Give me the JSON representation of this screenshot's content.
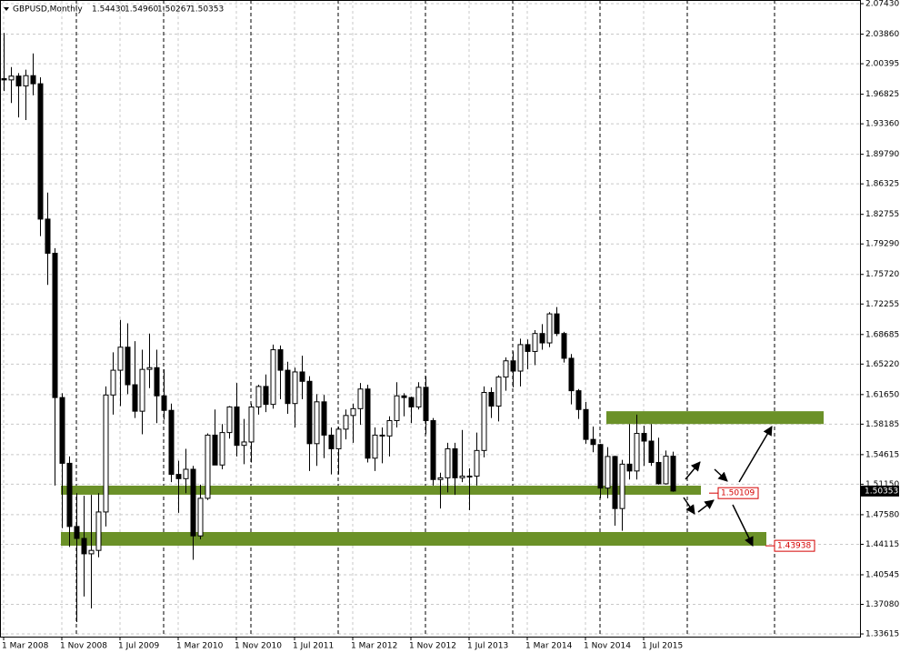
{
  "chart_data": {
    "type": "candlestick",
    "title": "GBPUSD,Monthly",
    "ohlc_text": [
      "1.54430",
      "1.54960",
      "1.50267",
      "1.50353"
    ],
    "x": [
      "1 Mar 2008",
      null,
      null,
      null,
      null,
      null,
      null,
      null,
      "1 Nov 2008",
      null,
      null,
      null,
      null,
      null,
      null,
      null,
      "1 Jul 2009",
      null,
      null,
      null,
      null,
      null,
      null,
      null,
      "1 Mar 2010",
      null,
      null,
      null,
      null,
      null,
      null,
      null,
      "1 Nov 2010",
      null,
      null,
      null,
      null,
      null,
      null,
      null,
      "1 Jul 2011",
      null,
      null,
      null,
      null,
      null,
      null,
      null,
      "1 Mar 2012",
      null,
      null,
      null,
      null,
      null,
      null,
      null,
      "1 Nov 2012",
      null,
      null,
      null,
      null,
      null,
      null,
      null,
      "1 Jul 2013",
      null,
      null,
      null,
      null,
      null,
      null,
      null,
      "1 Mar 2014",
      null,
      null,
      null,
      null,
      null,
      null,
      null,
      "1 Nov 2014",
      null,
      null,
      null,
      null,
      null,
      null,
      null,
      "1 Jul 2015",
      null,
      null,
      null,
      null
    ],
    "open": [
      1.9865,
      1.985,
      1.9895,
      1.978,
      1.99,
      1.9805,
      1.822,
      1.782,
      1.613,
      1.536,
      1.462,
      1.448,
      1.43,
      1.434,
      1.479,
      1.616,
      1.645,
      1.672,
      1.628,
      1.597,
      1.646,
      1.648,
      1.615,
      1.598,
      1.523,
      1.518,
      1.529,
      1.451,
      1.495,
      1.569,
      1.534,
      1.572,
      1.602,
      1.557,
      1.561,
      1.602,
      1.626,
      1.605,
      1.669,
      1.645,
      1.606,
      1.643,
      1.632,
      1.559,
      1.608,
      1.569,
      1.553,
      1.576,
      1.592,
      1.6,
      1.623,
      1.542,
      1.569,
      1.568,
      1.586,
      1.615,
      1.613,
      1.602,
      1.625,
      1.586,
      1.517,
      1.519,
      1.553,
      1.519,
      1.521,
      1.521,
      1.551,
      1.619,
      1.603,
      1.637,
      1.656,
      1.644,
      1.675,
      1.667,
      1.688,
      1.677,
      1.711,
      1.688,
      1.659,
      1.621,
      1.599,
      1.564,
      1.558,
      1.507,
      1.544,
      1.483,
      1.535,
      1.527,
      1.571,
      1.562,
      1.537,
      1.512,
      1.5443
    ],
    "high": [
      2.04,
      2.0,
      1.993,
      1.997,
      2.016,
      1.988,
      1.853,
      1.788,
      1.618,
      1.544,
      1.501,
      1.498,
      1.499,
      1.501,
      1.626,
      1.666,
      1.704,
      1.7,
      1.679,
      1.669,
      1.688,
      1.669,
      1.646,
      1.606,
      1.539,
      1.553,
      1.533,
      1.511,
      1.571,
      1.599,
      1.582,
      1.603,
      1.63,
      1.588,
      1.606,
      1.628,
      1.64,
      1.675,
      1.674,
      1.655,
      1.648,
      1.662,
      1.638,
      1.617,
      1.616,
      1.578,
      1.579,
      1.599,
      1.606,
      1.63,
      1.628,
      1.578,
      1.578,
      1.591,
      1.631,
      1.618,
      1.614,
      1.631,
      1.638,
      1.589,
      1.525,
      1.56,
      1.56,
      1.575,
      1.53,
      1.572,
      1.626,
      1.625,
      1.639,
      1.66,
      1.667,
      1.682,
      1.681,
      1.692,
      1.699,
      1.713,
      1.719,
      1.69,
      1.664,
      1.623,
      1.608,
      1.579,
      1.559,
      1.555,
      1.545,
      1.54,
      1.582,
      1.593,
      1.58,
      1.582,
      1.566,
      1.551,
      1.5496
    ],
    "low": [
      1.972,
      1.958,
      1.941,
      1.938,
      1.967,
      1.802,
      1.745,
      1.51,
      1.46,
      1.438,
      1.35,
      1.38,
      1.366,
      1.426,
      1.462,
      1.593,
      1.603,
      1.617,
      1.589,
      1.57,
      1.624,
      1.583,
      1.587,
      1.514,
      1.478,
      1.501,
      1.423,
      1.447,
      1.493,
      1.535,
      1.529,
      1.565,
      1.544,
      1.535,
      1.537,
      1.593,
      1.596,
      1.6,
      1.611,
      1.594,
      1.578,
      1.611,
      1.527,
      1.533,
      1.542,
      1.523,
      1.523,
      1.564,
      1.56,
      1.581,
      1.537,
      1.527,
      1.536,
      1.544,
      1.578,
      1.591,
      1.583,
      1.599,
      1.57,
      1.51,
      1.483,
      1.502,
      1.499,
      1.514,
      1.481,
      1.51,
      1.543,
      1.589,
      1.585,
      1.621,
      1.625,
      1.626,
      1.646,
      1.651,
      1.669,
      1.672,
      1.685,
      1.654,
      1.605,
      1.588,
      1.559,
      1.549,
      1.495,
      1.495,
      1.463,
      1.457,
      1.517,
      1.517,
      1.533,
      1.533,
      1.511,
      1.511,
      1.50267
    ],
    "close": [
      1.985,
      1.9895,
      1.978,
      1.99,
      1.9805,
      1.822,
      1.782,
      1.613,
      1.536,
      1.462,
      1.448,
      1.43,
      1.434,
      1.479,
      1.616,
      1.645,
      1.672,
      1.628,
      1.597,
      1.646,
      1.648,
      1.615,
      1.598,
      1.523,
      1.518,
      1.529,
      1.451,
      1.495,
      1.569,
      1.534,
      1.572,
      1.602,
      1.557,
      1.561,
      1.602,
      1.626,
      1.605,
      1.669,
      1.645,
      1.606,
      1.643,
      1.632,
      1.559,
      1.608,
      1.569,
      1.553,
      1.576,
      1.592,
      1.6,
      1.623,
      1.542,
      1.569,
      1.568,
      1.586,
      1.615,
      1.613,
      1.602,
      1.625,
      1.586,
      1.517,
      1.519,
      1.553,
      1.519,
      1.521,
      1.521,
      1.551,
      1.619,
      1.603,
      1.637,
      1.656,
      1.644,
      1.675,
      1.667,
      1.688,
      1.677,
      1.711,
      1.688,
      1.659,
      1.621,
      1.599,
      1.564,
      1.558,
      1.507,
      1.544,
      1.483,
      1.535,
      1.527,
      1.571,
      1.562,
      1.537,
      1.512,
      1.5443,
      1.50353
    ],
    "up_color": "#ffffff",
    "down_color": "#000000",
    "ylim": [
      1.333,
      2.0786
    ],
    "yticks": [
      {
        "value": 2.0743,
        "label": "2.07430"
      },
      {
        "value": 2.0386,
        "label": "2.03860"
      },
      2.00395,
      1.96825,
      {
        "value": 1.9336,
        "label": "1.93360"
      },
      {
        "value": 1.8979,
        "label": "1.89790"
      },
      1.86325,
      1.82755,
      {
        "value": 1.7929,
        "label": "1.79290"
      },
      {
        "value": 1.7572,
        "label": "1.75720"
      },
      1.72255,
      1.68685,
      {
        "value": 1.6522,
        "label": "1.65220"
      },
      {
        "value": 1.6165,
        "label": "1.61650"
      },
      1.58185,
      1.54615,
      {
        "value": 1.5115,
        "label": "1.51150"
      },
      {
        "value": 1.4758,
        "label": "1.47580"
      },
      1.44115,
      1.40545,
      {
        "value": 1.3708,
        "label": "1.37080"
      },
      1.33615
    ],
    "current_price": {
      "value": 1.50353,
      "label": "1.50353"
    },
    "grid": true,
    "zones": [
      {
        "low": 1.582,
        "high": 1.597
      },
      {
        "low": 1.4992,
        "high": 1.5098
      },
      {
        "low": 1.4395,
        "high": 1.4555
      }
    ],
    "zone_color": "#6b9128",
    "levels": [
      1.50109,
      1.43938
    ],
    "level_color": "#d40000"
  }
}
